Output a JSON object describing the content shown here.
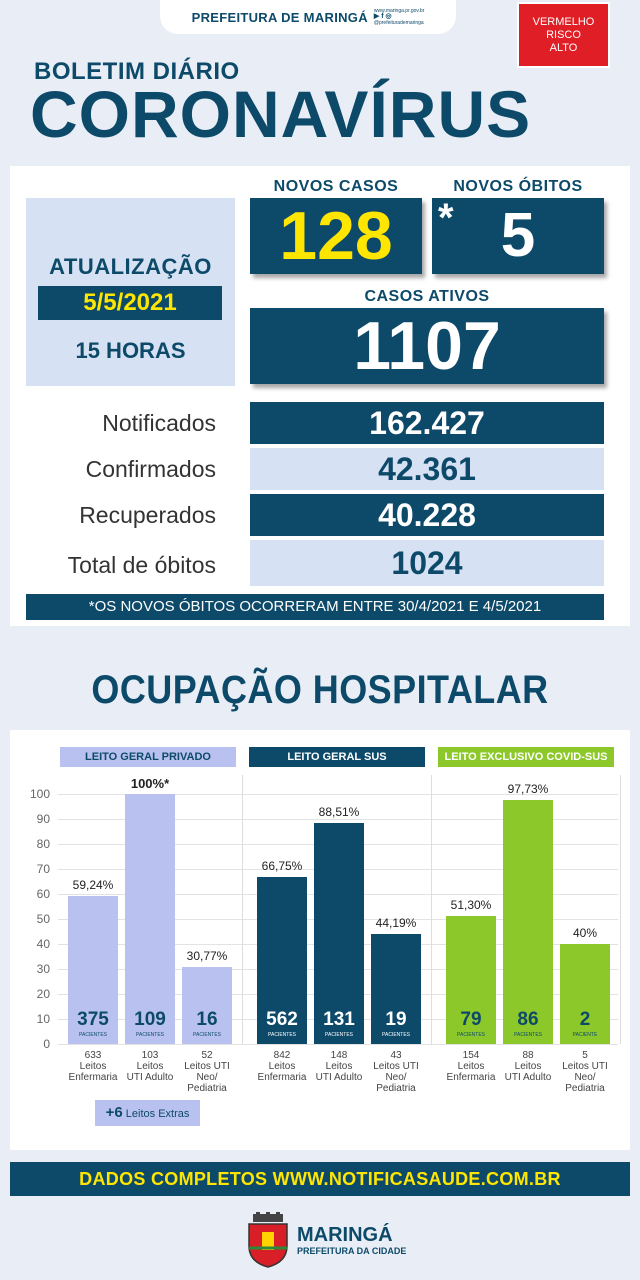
{
  "header": {
    "org": "PREFEITURA DE MARINGÁ",
    "site": "www.maringa.pr.gov.br",
    "social_handle": "@prefeiturademaringa",
    "risk": [
      "VERMELHO",
      "RISCO",
      "ALTO"
    ]
  },
  "title": {
    "line1": "BOLETIM DIÁRIO",
    "line2": "CORONAVÍRUS"
  },
  "update": {
    "label": "ATUALIZAÇÃO",
    "date": "5/5/2021",
    "hour": "15 HORAS"
  },
  "kpis": {
    "new_cases_label": "NOVOS CASOS",
    "new_cases": "128",
    "new_deaths_label": "NOVOS ÓBITOS",
    "new_deaths_mark": "*",
    "new_deaths": "5",
    "active_label": "CASOS ATIVOS",
    "active": "1107"
  },
  "rows": [
    {
      "label": "Notificados",
      "value": "162.427"
    },
    {
      "label": "Confirmados",
      "value": "42.361"
    },
    {
      "label": "Recuperados",
      "value": "40.228"
    },
    {
      "label": "Total de óbitos",
      "value": "1024"
    }
  ],
  "note": "*OS NOVOS ÓBITOS OCORRERAM ENTRE 30/4/2021 E 4/5/2021",
  "occupancy_title": "OCUPAÇÃO HOSPITALAR",
  "chart_data": {
    "type": "bar",
    "ylim": [
      0,
      100
    ],
    "yticks": [
      0,
      10,
      20,
      30,
      40,
      50,
      60,
      70,
      80,
      90,
      100
    ],
    "groups": [
      {
        "title": "LEITO GERAL PRIVADO",
        "color": "#b9c1f0",
        "title_color": "#b9c1f0",
        "value_color": "#0d4a6a",
        "bars": [
          {
            "pct": 59.24,
            "pct_label": "59,24%",
            "patients": "375",
            "unit": "PACIENTES",
            "caption": [
              "633",
              "Leitos",
              "Enfermaria"
            ]
          },
          {
            "pct": 100,
            "pct_label": "100%*",
            "patients": "109",
            "unit": "PACIENTES",
            "caption": [
              "103",
              "Leitos",
              "UTI Adulto"
            ]
          },
          {
            "pct": 30.77,
            "pct_label": "30,77%",
            "patients": "16",
            "unit": "PACIENTES",
            "caption": [
              "52",
              "Leitos UTI",
              "Neo/",
              "Pediatria"
            ]
          }
        ]
      },
      {
        "title": "LEITO GERAL SUS",
        "color": "#0d4a6a",
        "title_color": "#0d4a6a",
        "value_color": "#ffffff",
        "bars": [
          {
            "pct": 66.75,
            "pct_label": "66,75%",
            "patients": "562",
            "unit": "PACIENTES",
            "caption": [
              "842",
              "Leitos",
              "Enfermaria"
            ]
          },
          {
            "pct": 88.51,
            "pct_label": "88,51%",
            "patients": "131",
            "unit": "PACIENTES",
            "caption": [
              "148",
              "Leitos",
              "UTI Adulto"
            ]
          },
          {
            "pct": 44.19,
            "pct_label": "44,19%",
            "patients": "19",
            "unit": "PACIENTES",
            "caption": [
              "43",
              "Leitos UTI",
              "Neo/",
              "Pediatria"
            ]
          }
        ]
      },
      {
        "title": "LEITO EXCLUSIVO COVID-SUS",
        "color": "#8dc82b",
        "title_color": "#8dc82b",
        "value_color": "#0d4a6a",
        "bars": [
          {
            "pct": 51.3,
            "pct_label": "51,30%",
            "patients": "79",
            "unit": "PACIENTES",
            "caption": [
              "154",
              "Leitos",
              "Enfermaria"
            ]
          },
          {
            "pct": 97.73,
            "pct_label": "97,73%",
            "patients": "86",
            "unit": "PACIENTES",
            "caption": [
              "88",
              "Leitos",
              "UTI Adulto"
            ]
          },
          {
            "pct": 40,
            "pct_label": "40%",
            "patients": "2",
            "unit": "PACIENTE",
            "caption": [
              "5",
              "Leitos UTI",
              "Neo/",
              "Pediatria"
            ]
          }
        ]
      }
    ]
  },
  "extras": {
    "count": "+6",
    "label": "Leitos Extras"
  },
  "footer": {
    "link": "DADOS COMPLETOS  WWW.NOTIFICASAUDE.COM.BR",
    "city": "MARINGÁ",
    "city_sub": "PREFEITURA DA CIDADE"
  }
}
